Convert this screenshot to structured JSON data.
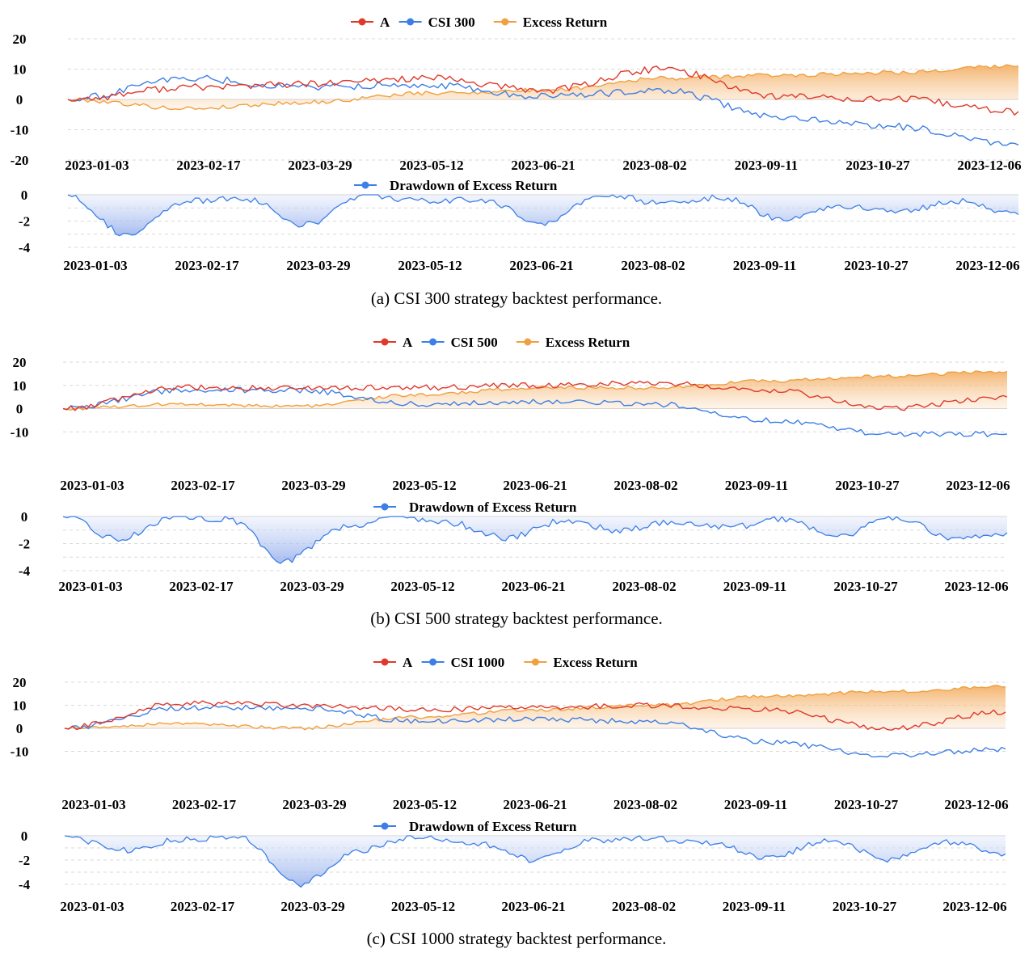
{
  "chart_data": [
    {
      "type": "line",
      "id": "a",
      "caption": "(a)  CSI 300 strategy backtest performance.",
      "categories": [
        "2023-01-03",
        "2023-02-17",
        "2023-03-29",
        "2023-05-12",
        "2023-06-21",
        "2023-08-02",
        "2023-09-11",
        "2023-10-27",
        "2023-12-06"
      ],
      "series": [
        {
          "name": "A",
          "color": "#e0392b",
          "values": [
            0,
            4,
            5,
            7,
            3,
            10,
            1,
            0,
            -4
          ]
        },
        {
          "name": "CSI 300",
          "color": "#3d7fe6",
          "values": [
            0,
            7,
            4,
            5,
            1,
            3,
            -6,
            -9,
            -15
          ]
        },
        {
          "name": "Excess Return",
          "color": "#f0a040",
          "values": [
            0,
            -3,
            -1,
            2,
            3,
            7,
            8,
            9,
            11
          ]
        }
      ],
      "ylim": [
        -20,
        20
      ],
      "yticks": [
        "20",
        "10",
        "0",
        "-10",
        "-20"
      ],
      "drawdown": {
        "name": "Drawdown of Excess Return",
        "color": "#3d7fe6",
        "values": [
          0,
          -3.1,
          -0.5,
          -0.3,
          -2.3,
          0,
          -0.5,
          -0.4,
          -2.2,
          0,
          -0.6,
          -0.2,
          -1.8,
          -0.9,
          -1.2,
          -0.5,
          -1.5
        ],
        "ylim": [
          -4,
          0
        ],
        "yticks": [
          "0",
          "-2",
          "-4"
        ]
      }
    },
    {
      "type": "line",
      "id": "b",
      "caption": "(b)  CSI 500 strategy backtest performance.",
      "categories": [
        "2023-01-03",
        "2023-02-17",
        "2023-03-29",
        "2023-05-12",
        "2023-06-21",
        "2023-08-02",
        "2023-09-11",
        "2023-10-27",
        "2023-12-06"
      ],
      "series": [
        {
          "name": "A",
          "color": "#e0392b",
          "values": [
            0,
            9,
            9,
            9,
            10,
            11,
            8,
            0,
            5
          ]
        },
        {
          "name": "CSI 500",
          "color": "#3d7fe6",
          "values": [
            0,
            8,
            8,
            2,
            3,
            2,
            -5,
            -11,
            -11
          ]
        },
        {
          "name": "Excess Return",
          "color": "#f0a040",
          "values": [
            0,
            2,
            1,
            6,
            9,
            9,
            12,
            14,
            16
          ]
        }
      ],
      "ylim": [
        -20,
        20
      ],
      "yticks": [
        "20",
        "10",
        "0",
        "-10"
      ],
      "drawdown": {
        "name": "Drawdown of Excess Return",
        "color": "#3d7fe6",
        "values": [
          0,
          -1.7,
          0,
          -0.2,
          -3.3,
          -0.8,
          0,
          -0.5,
          -1.6,
          -0.3,
          -1.0,
          -0.4,
          -0.8,
          -0.2,
          -1.4,
          0,
          -1.7,
          -1.2
        ],
        "ylim": [
          -4,
          0
        ],
        "yticks": [
          "0",
          "-2",
          "-4"
        ]
      }
    },
    {
      "type": "line",
      "id": "c",
      "caption": "(c)  CSI 1000 strategy backtest performance.",
      "categories": [
        "2023-01-03",
        "2023-02-17",
        "2023-03-29",
        "2023-05-12",
        "2023-06-21",
        "2023-08-02",
        "2023-09-11",
        "2023-10-27",
        "2023-12-06"
      ],
      "series": [
        {
          "name": "A",
          "color": "#e0392b",
          "values": [
            0,
            11,
            10,
            8,
            9,
            10,
            8,
            0,
            7
          ]
        },
        {
          "name": "CSI 1000",
          "color": "#3d7fe6",
          "values": [
            0,
            9,
            9,
            3,
            4,
            3,
            -6,
            -12,
            -9
          ]
        },
        {
          "name": "Excess Return",
          "color": "#f0a040",
          "values": [
            0,
            2,
            0,
            5,
            8,
            10,
            14,
            16,
            18
          ]
        }
      ],
      "ylim": [
        -20,
        20
      ],
      "yticks": [
        "20",
        "10",
        "0",
        "-10"
      ],
      "drawdown": {
        "name": "Drawdown of Excess Return",
        "color": "#3d7fe6",
        "values": [
          0,
          -1.2,
          -0.3,
          -0.1,
          -4.0,
          -1.2,
          0,
          -0.6,
          -2.0,
          -0.4,
          -0.2,
          -0.6,
          -1.8,
          -0.3,
          -2.0,
          -0.5,
          -1.5
        ],
        "ylim": [
          -4,
          0
        ],
        "yticks": [
          "0",
          "-2",
          "-4"
        ]
      }
    }
  ]
}
